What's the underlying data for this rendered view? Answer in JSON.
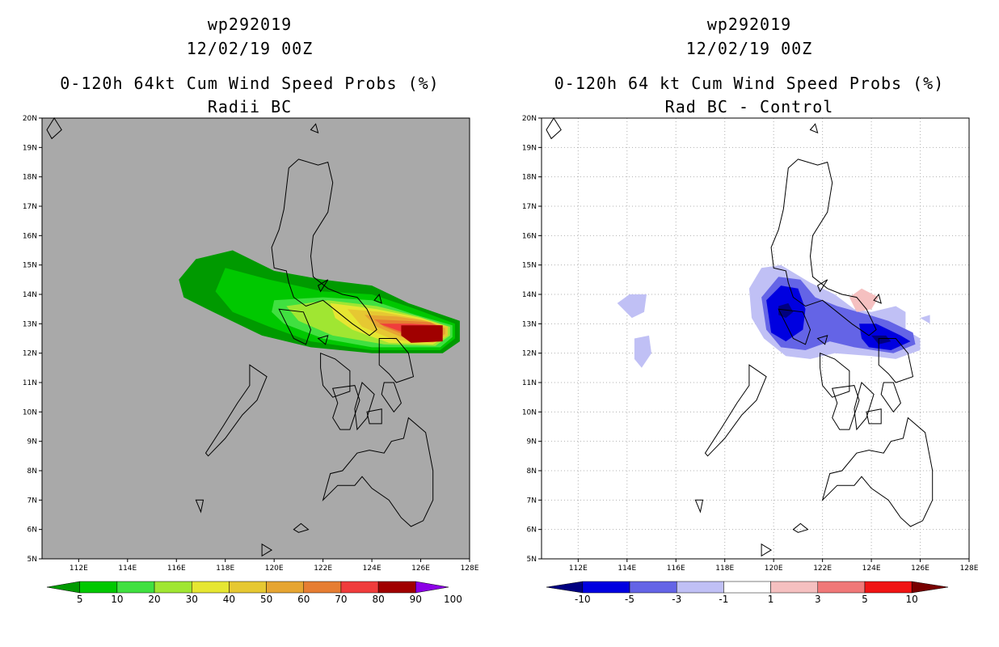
{
  "panels": [
    {
      "id": "radii-bc",
      "title_lines": [
        "wp292019",
        "12/02/19 00Z",
        "0-120h 64kt Cum Wind Speed Probs (%)",
        "Radii BC"
      ],
      "background": "#a9a9a9",
      "gridlines": false,
      "colorbar": {
        "labels": [
          "5",
          "10",
          "20",
          "30",
          "40",
          "50",
          "60",
          "70",
          "80",
          "90",
          "100"
        ],
        "colors": [
          "#009a00",
          "#00c800",
          "#40e040",
          "#a0e632",
          "#e6e632",
          "#e6c832",
          "#e6a532",
          "#e67d32",
          "#f03c3c",
          "#a00000",
          "#8c00e6"
        ]
      }
    },
    {
      "id": "rad-bc-control",
      "title_lines": [
        "wp292019",
        "12/02/19 00Z",
        "0-120h 64 kt Cum Wind Speed Probs (%)",
        "Rad BC - Control"
      ],
      "background": "#ffffff",
      "gridlines": true,
      "colorbar": {
        "labels": [
          "-10",
          "-5",
          "-3",
          "-1",
          "1",
          "3",
          "5",
          "10"
        ],
        "colors": [
          "#000080",
          "#0000e0",
          "#6464e6",
          "#c0c0f5",
          "#ffffff",
          "#f5c0c0",
          "#f07878",
          "#f01414",
          "#780000"
        ]
      }
    }
  ],
  "axes": {
    "lon_labels": [
      "112E",
      "114E",
      "116E",
      "118E",
      "120E",
      "122E",
      "124E",
      "126E",
      "128E"
    ],
    "lat_labels": [
      "5N",
      "6N",
      "7N",
      "8N",
      "9N",
      "10N",
      "11N",
      "12N",
      "13N",
      "14N",
      "15N",
      "16N",
      "17N",
      "18N",
      "19N",
      "20N"
    ],
    "lon_range": [
      110.5,
      128
    ],
    "lat_range": [
      5,
      20
    ]
  },
  "chart_data": [
    {
      "type": "heatmap",
      "title": "0-120h 64kt Cum Wind Speed Probs (%)",
      "subtitle": "Radii BC",
      "x_range": [
        110.5,
        128
      ],
      "y_range": [
        5,
        20
      ],
      "levels": [
        5,
        10,
        20,
        30,
        40,
        50,
        60,
        70,
        80,
        90,
        100
      ],
      "contours": [
        {
          "min": 5,
          "points": [
            [
              116.1,
              14.5
            ],
            [
              116.8,
              15.2
            ],
            [
              118.3,
              15.5
            ],
            [
              120.0,
              14.8
            ],
            [
              122.0,
              14.5
            ],
            [
              124.0,
              14.3
            ],
            [
              125.5,
              13.7
            ],
            [
              127.6,
              13.1
            ],
            [
              127.6,
              12.4
            ],
            [
              126.9,
              12.0
            ],
            [
              124.0,
              12.0
            ],
            [
              121.5,
              12.2
            ],
            [
              119.5,
              12.6
            ],
            [
              117.5,
              13.4
            ],
            [
              116.3,
              13.9
            ]
          ]
        },
        {
          "min": 10,
          "points": [
            [
              118.0,
              14.9
            ],
            [
              119.8,
              14.5
            ],
            [
              122.0,
              14.1
            ],
            [
              124.0,
              14.0
            ],
            [
              125.8,
              13.5
            ],
            [
              127.4,
              13.0
            ],
            [
              127.4,
              12.5
            ],
            [
              126.8,
              12.1
            ],
            [
              124.0,
              12.1
            ],
            [
              121.5,
              12.4
            ],
            [
              119.8,
              12.9
            ],
            [
              118.3,
              13.4
            ],
            [
              117.6,
              14.1
            ]
          ]
        },
        {
          "min": 20,
          "points": [
            [
              120.0,
              13.8
            ],
            [
              122.0,
              13.9
            ],
            [
              124.0,
              13.8
            ],
            [
              125.8,
              13.3
            ],
            [
              127.3,
              12.95
            ],
            [
              127.3,
              12.55
            ],
            [
              126.8,
              12.2
            ],
            [
              124.0,
              12.2
            ],
            [
              122.0,
              12.5
            ],
            [
              120.4,
              13.0
            ],
            [
              119.9,
              13.4
            ]
          ]
        },
        {
          "min": 30,
          "points": [
            [
              120.5,
              13.6
            ],
            [
              122.2,
              13.8
            ],
            [
              124.2,
              13.6
            ],
            [
              125.9,
              13.25
            ],
            [
              127.2,
              12.9
            ],
            [
              127.2,
              12.6
            ],
            [
              126.6,
              12.25
            ],
            [
              124.5,
              12.3
            ],
            [
              122.4,
              12.6
            ],
            [
              121.0,
              13.1
            ]
          ]
        },
        {
          "min": 40,
          "points": [
            [
              122.3,
              13.7
            ],
            [
              124.2,
              13.5
            ],
            [
              126.0,
              13.2
            ],
            [
              127.1,
              12.9
            ],
            [
              127.1,
              12.6
            ],
            [
              126.5,
              12.3
            ],
            [
              124.7,
              12.35
            ],
            [
              123.2,
              12.8
            ],
            [
              122.5,
              13.2
            ]
          ]
        },
        {
          "min": 50,
          "points": [
            [
              123.0,
              13.5
            ],
            [
              124.4,
              13.4
            ],
            [
              126.0,
              13.15
            ],
            [
              127.1,
              12.9
            ],
            [
              127.1,
              12.6
            ],
            [
              126.5,
              12.35
            ],
            [
              124.9,
              12.45
            ],
            [
              123.6,
              12.9
            ]
          ]
        },
        {
          "min": 60,
          "points": [
            [
              123.7,
              13.3
            ],
            [
              125.0,
              13.25
            ],
            [
              126.2,
              13.1
            ],
            [
              127.0,
              12.85
            ],
            [
              127.0,
              12.65
            ],
            [
              126.4,
              12.4
            ],
            [
              125.2,
              12.55
            ],
            [
              124.2,
              12.9
            ]
          ]
        },
        {
          "min": 70,
          "points": [
            [
              124.1,
              13.15
            ],
            [
              125.4,
              13.1
            ],
            [
              126.4,
              13.05
            ],
            [
              126.9,
              12.85
            ],
            [
              126.9,
              12.7
            ],
            [
              126.3,
              12.5
            ],
            [
              125.4,
              12.6
            ],
            [
              124.5,
              12.9
            ]
          ]
        },
        {
          "min": 80,
          "points": [
            [
              124.3,
              13.0
            ],
            [
              125.6,
              13.0
            ],
            [
              126.8,
              12.95
            ],
            [
              126.8,
              12.6
            ],
            [
              125.8,
              12.55
            ],
            [
              124.8,
              12.85
            ]
          ]
        },
        {
          "min": 90,
          "points": [
            [
              125.2,
              12.95
            ],
            [
              126.9,
              12.95
            ],
            [
              126.9,
              12.4
            ],
            [
              125.6,
              12.35
            ],
            [
              125.2,
              12.6
            ]
          ]
        }
      ]
    },
    {
      "type": "heatmap",
      "title": "0-120h 64 kt Cum Wind Speed Probs (%)",
      "subtitle": "Rad BC - Control",
      "x_range": [
        110.5,
        128
      ],
      "y_range": [
        5,
        20
      ],
      "levels": [
        -10,
        -5,
        -3,
        -1,
        1,
        3,
        5,
        10
      ],
      "contours": [
        {
          "level": "-1 to -3",
          "points": [
            [
              113.6,
              13.7
            ],
            [
              114.1,
              14.0
            ],
            [
              114.8,
              14.0
            ],
            [
              114.7,
              13.4
            ],
            [
              114.2,
              13.2
            ]
          ]
        },
        {
          "level": "-1 to -3",
          "points": [
            [
              114.3,
              12.5
            ],
            [
              114.9,
              12.6
            ],
            [
              115.0,
              12.0
            ],
            [
              114.6,
              11.5
            ],
            [
              114.3,
              11.8
            ]
          ]
        },
        {
          "level": "-1 to -3",
          "points": [
            [
              119.0,
              14.2
            ],
            [
              119.5,
              14.9
            ],
            [
              120.3,
              15.0
            ],
            [
              121.5,
              14.4
            ],
            [
              122.5,
              14.0
            ],
            [
              123.3,
              13.5
            ],
            [
              124.0,
              13.4
            ],
            [
              125.0,
              13.6
            ],
            [
              125.4,
              13.4
            ],
            [
              125.4,
              12.8
            ],
            [
              126.0,
              12.5
            ],
            [
              126.0,
              12.1
            ],
            [
              125.0,
              11.8
            ],
            [
              124.0,
              11.9
            ],
            [
              122.5,
              12.0
            ],
            [
              121.5,
              11.8
            ],
            [
              120.5,
              11.9
            ],
            [
              119.6,
              12.5
            ],
            [
              119.1,
              13.2
            ]
          ]
        },
        {
          "level": "-3 to -5",
          "points": [
            [
              119.5,
              13.9
            ],
            [
              120.2,
              14.6
            ],
            [
              121.1,
              14.5
            ],
            [
              121.7,
              13.9
            ],
            [
              122.6,
              13.6
            ],
            [
              123.9,
              13.3
            ],
            [
              124.7,
              13.1
            ],
            [
              125.7,
              12.7
            ],
            [
              125.8,
              12.3
            ],
            [
              124.9,
              12.0
            ],
            [
              123.3,
              12.2
            ],
            [
              122.3,
              12.4
            ],
            [
              121.3,
              12.1
            ],
            [
              120.3,
              12.2
            ],
            [
              119.7,
              12.8
            ]
          ]
        },
        {
          "level": "-5 to -10",
          "points": [
            [
              119.7,
              13.8
            ],
            [
              120.3,
              14.3
            ],
            [
              121.0,
              14.2
            ],
            [
              121.3,
              13.5
            ],
            [
              121.2,
              12.8
            ],
            [
              120.5,
              12.4
            ],
            [
              119.9,
              12.7
            ]
          ]
        },
        {
          "level": "-5 to -10",
          "points": [
            [
              123.5,
              13.0
            ],
            [
              124.2,
              13.0
            ],
            [
              125.2,
              12.6
            ],
            [
              125.6,
              12.4
            ],
            [
              124.8,
              12.1
            ],
            [
              123.9,
              12.2
            ],
            [
              123.6,
              12.5
            ]
          ]
        },
        {
          "level": "below -10",
          "points": [
            [
              120.2,
              13.6
            ],
            [
              120.6,
              13.7
            ],
            [
              120.8,
              13.4
            ],
            [
              120.5,
              13.2
            ],
            [
              120.2,
              13.3
            ]
          ]
        },
        {
          "level": "below -10",
          "points": [
            [
              124.0,
              12.6
            ],
            [
              124.6,
              12.6
            ],
            [
              124.8,
              12.4
            ],
            [
              124.3,
              12.3
            ]
          ]
        },
        {
          "level": "1 to 3",
          "points": [
            [
              123.1,
              13.9
            ],
            [
              123.6,
              14.2
            ],
            [
              124.3,
              13.9
            ],
            [
              124.0,
              13.5
            ],
            [
              123.4,
              13.4
            ]
          ]
        },
        {
          "level": "-1 to -3",
          "points": [
            [
              126.0,
              13.2
            ],
            [
              126.4,
              13.3
            ],
            [
              126.4,
              13.0
            ]
          ]
        }
      ]
    }
  ]
}
